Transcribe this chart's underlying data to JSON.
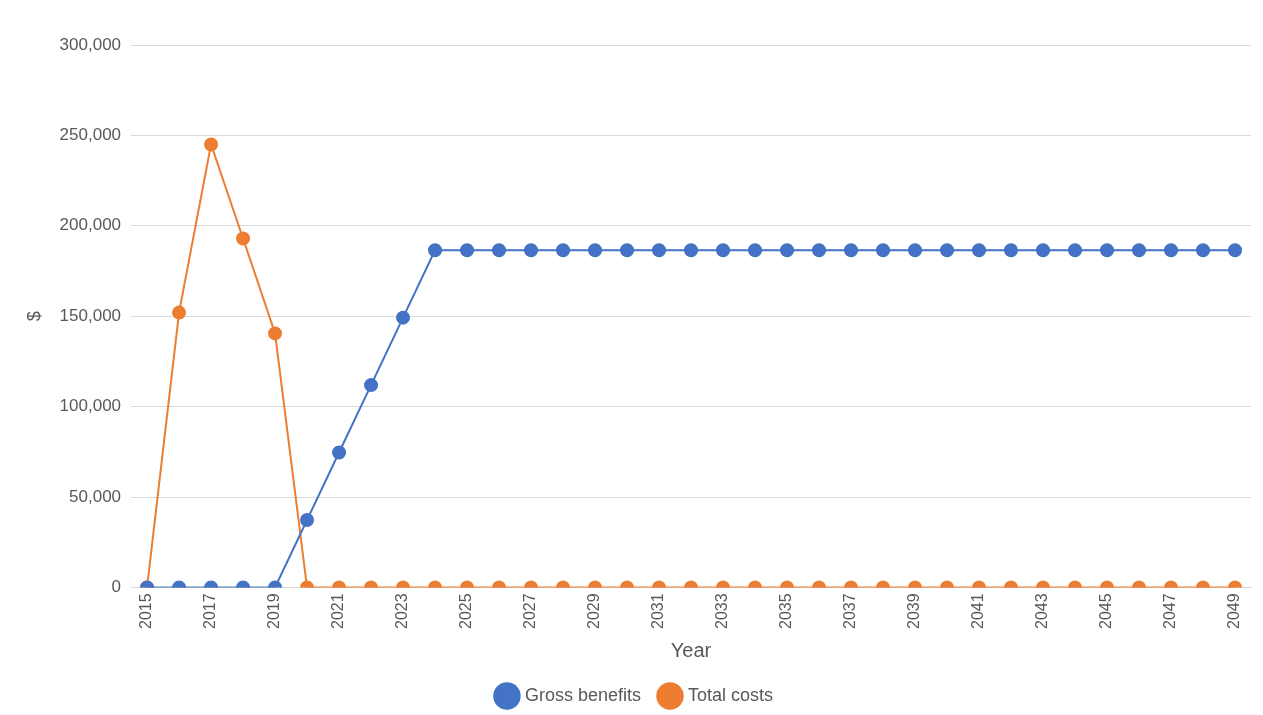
{
  "chart_data": {
    "type": "line",
    "xlabel": "Year",
    "ylabel": "$",
    "categories": [
      "2015",
      null,
      "2017",
      null,
      "2019",
      null,
      "2021",
      null,
      "2023",
      null,
      "2025",
      null,
      "2027",
      null,
      "2029",
      null,
      "2031",
      null,
      "2033",
      null,
      "2035",
      null,
      "2037",
      null,
      "2039",
      null,
      "2041",
      null,
      "2043",
      null,
      "2045",
      null,
      "2047",
      null,
      "2049"
    ],
    "series": [
      {
        "name": "Gross benefits",
        "color": "#4472c4",
        "values": [
          0,
          0,
          0,
          0,
          0,
          37300,
          74600,
          111900,
          149200,
          186500,
          186500,
          186500,
          186500,
          186500,
          186500,
          186500,
          186500,
          186500,
          186500,
          186500,
          186500,
          186500,
          186500,
          186500,
          186500,
          186500,
          186500,
          186500,
          186500,
          186500,
          186500,
          186500,
          186500,
          186500,
          186500
        ]
      },
      {
        "name": "Total costs",
        "color": "#ed7d31",
        "values": [
          0,
          152000,
          245000,
          193000,
          140500,
          0,
          0,
          0,
          0,
          0,
          0,
          0,
          0,
          0,
          0,
          0,
          0,
          0,
          0,
          0,
          0,
          0,
          0,
          0,
          0,
          0,
          0,
          0,
          0,
          0,
          0,
          0,
          0,
          0,
          0
        ]
      }
    ],
    "ylim": [
      0,
      300000
    ],
    "yticks": [
      0,
      {
        "value": 50000,
        "label": "50,000"
      },
      {
        "value": 100000,
        "label": "100,000"
      },
      {
        "value": 150000,
        "label": "150,000"
      },
      {
        "value": 200000,
        "label": "200,000"
      },
      {
        "value": 250000,
        "label": "250,000"
      },
      {
        "value": 300000,
        "label": "300,000"
      }
    ],
    "grid": "y",
    "legend": "bottom",
    "marker": "circle",
    "line_style": "solid"
  }
}
